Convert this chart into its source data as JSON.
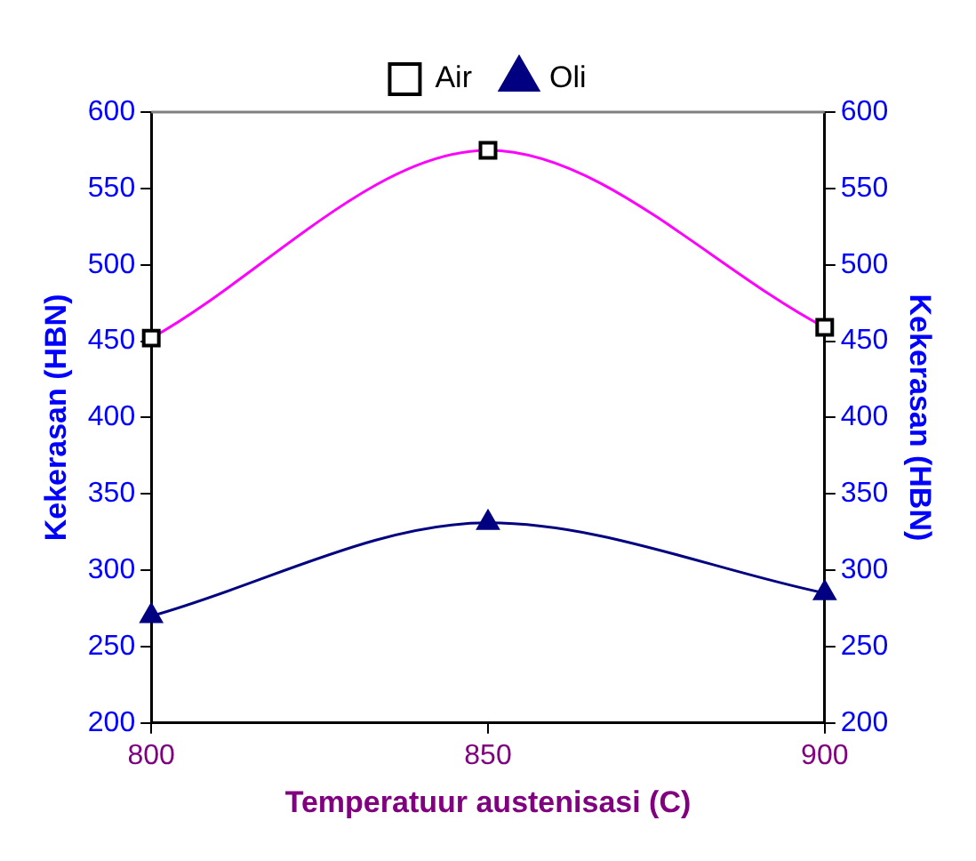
{
  "chart_data": {
    "type": "line",
    "xlabel": "Temperatuur austenisasi (C)",
    "ylabel": "Kekerasan (HBN)",
    "y2label": "Kekerasan (HBN)",
    "x": [
      800,
      850,
      900
    ],
    "xlim": [
      800,
      900
    ],
    "xticks": [
      800,
      850,
      900
    ],
    "ylim": [
      200,
      600
    ],
    "yticks": [
      200,
      250,
      300,
      350,
      400,
      450,
      500,
      550,
      600
    ],
    "y2lim": [
      200,
      600
    ],
    "y2ticks": [
      200,
      250,
      300,
      350,
      400,
      450,
      500,
      550,
      600
    ],
    "legend": "top",
    "grid": false,
    "series": [
      {
        "name": "Air",
        "color": "#ff00ff",
        "marker": "square",
        "values": [
          452,
          575,
          459
        ]
      },
      {
        "name": "Oli",
        "color": "#000080",
        "marker": "triangle",
        "values": [
          270,
          331,
          285
        ]
      }
    ]
  }
}
